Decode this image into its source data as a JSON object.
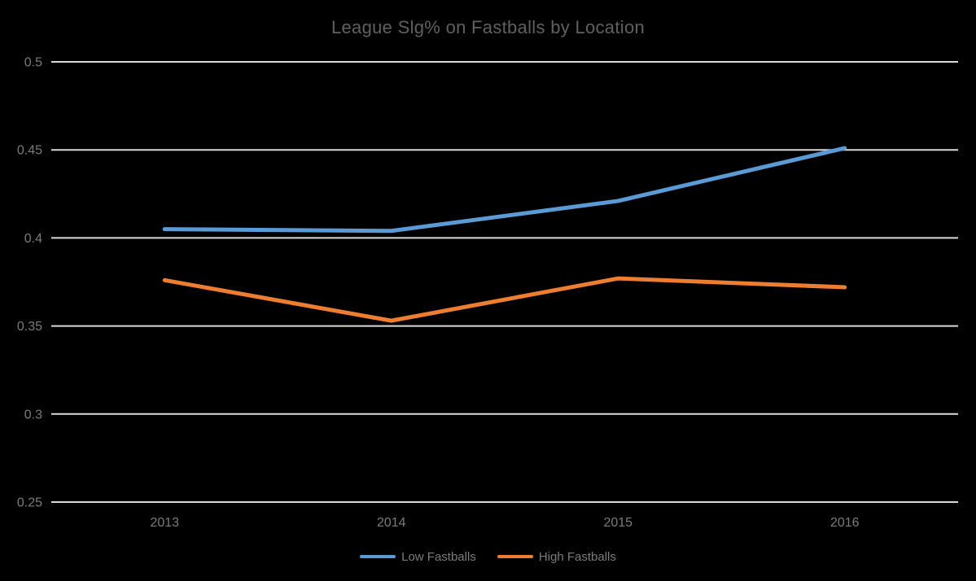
{
  "page": {
    "background": "#000000"
  },
  "chart_data": {
    "type": "line",
    "title": "League Slg% on Fastballs by Location",
    "categories": [
      "2013",
      "2014",
      "2015",
      "2016"
    ],
    "series": [
      {
        "name": "Low Fastballs",
        "color": "#5B9BD5",
        "values": [
          0.405,
          0.404,
          0.421,
          0.451
        ]
      },
      {
        "name": "High Fastballs",
        "color": "#ED7D31",
        "values": [
          0.376,
          0.353,
          0.377,
          0.372
        ]
      }
    ],
    "xlabel": "",
    "ylabel": "",
    "ylim": [
      0.25,
      0.5
    ],
    "yticks": [
      0.5,
      0.45,
      0.4,
      0.35,
      0.3,
      0.25
    ],
    "ytick_labels": [
      "0.5",
      "0.45",
      "0.4",
      "0.35",
      "0.3",
      "0.25"
    ],
    "grid": true,
    "legend_position": "bottom",
    "gridline_color": "#d9d9d9",
    "text_color": "#7b7b7b",
    "title_color": "#606060",
    "background": "#000000"
  }
}
